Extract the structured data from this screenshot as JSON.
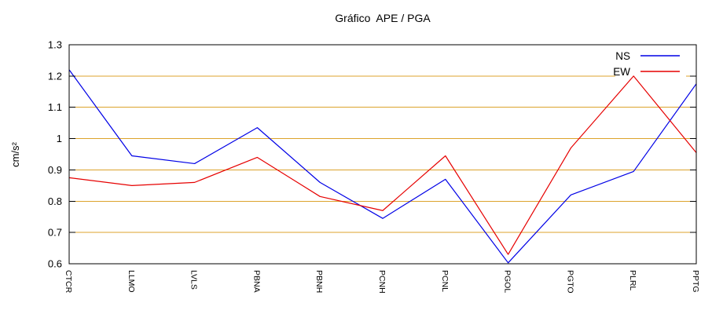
{
  "chart_data": {
    "type": "line",
    "title": "Gráfico  APE / PGA",
    "ylabel": "cm/s²",
    "xlabel": "",
    "categories": [
      "CTCR",
      "LLMO",
      "LVLS",
      "PBNA",
      "PBNH",
      "PCNH",
      "PCNL",
      "PGOL",
      "PGTO",
      "PLRL",
      "PPTG"
    ],
    "series": [
      {
        "name": "NS",
        "color": "#0000e6",
        "values": [
          1.22,
          0.945,
          0.92,
          1.035,
          0.86,
          0.745,
          0.87,
          0.603,
          0.82,
          0.895,
          1.175
        ]
      },
      {
        "name": "EW",
        "color": "#e60000",
        "values": [
          0.875,
          0.85,
          0.86,
          0.94,
          0.815,
          0.77,
          0.945,
          0.63,
          0.97,
          1.2,
          0.955
        ]
      }
    ],
    "ylim": [
      0.6,
      1.3
    ],
    "yticks": [
      0.6,
      0.7,
      0.8,
      0.9,
      1,
      1.1,
      1.2,
      1.3
    ],
    "ytick_labels": [
      "0.6",
      "0.7",
      "0.8",
      "0.9",
      "1",
      "1.1",
      "1.2",
      "1.3"
    ],
    "grid": true,
    "grid_color": "#dca32c",
    "axis_color": "#000000",
    "background": "#ffffff",
    "legend_position": "top-right"
  }
}
